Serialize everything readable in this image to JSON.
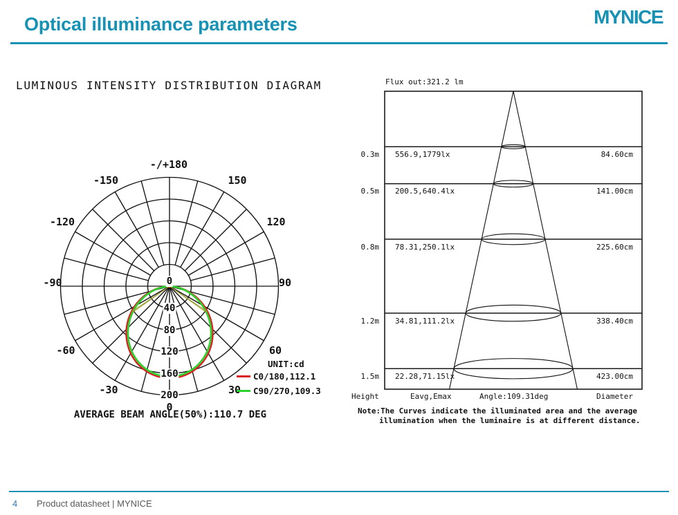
{
  "header": {
    "title": "Optical illuminance parameters",
    "logo": "MYNICE"
  },
  "colors": {
    "accent": "#1792b4",
    "curve_c0": "#d92121",
    "curve_c90": "#2fd32f",
    "beam_marker": "#9b9b2a",
    "grid": "#111111"
  },
  "chart_data": [
    {
      "type": "polar",
      "name": "luminous-intensity-distribution",
      "title": "LUMINOUS INTENSITY DISTRIBUTION DIAGRAM",
      "unit_label": "UNIT:cd",
      "angle_grid_step_deg": 15,
      "radial_axis_max": 200,
      "angle_tick_labels": [
        "-/+180",
        "-150",
        "150",
        "-120",
        "120",
        "-90",
        "90",
        "-60",
        "60",
        "-30",
        "30",
        "0"
      ],
      "radial_tick_labels": [
        "0",
        "40",
        "80",
        "120",
        "160",
        "200"
      ],
      "series": [
        {
          "label": "C0/180,112.1",
          "plane": "C0/180",
          "beam_angle_deg": 112.1,
          "peak_cd": 169,
          "color": "#d92121"
        },
        {
          "label": "C90/270,109.3",
          "plane": "C90/270",
          "beam_angle_deg": 109.3,
          "peak_cd": 166,
          "color": "#2fd32f"
        }
      ],
      "average_beam_angle_deg": 110.7,
      "footer_label": "AVERAGE BEAM ANGLE(50%):110.7 DEG"
    },
    {
      "type": "cone",
      "name": "illuminance-at-distance",
      "flux_label": "Flux out:321.2 lm",
      "flux_lm": 321.2,
      "beam_angle_deg": 109.31,
      "rows": [
        {
          "height": "0.3m",
          "height_m": 0.3,
          "eavg_emax": "556.9,1779lx",
          "diameter": "84.60cm"
        },
        {
          "height": "0.5m",
          "height_m": 0.5,
          "eavg_emax": "200.5,640.4lx",
          "diameter": "141.00cm"
        },
        {
          "height": "0.8m",
          "height_m": 0.8,
          "eavg_emax": "78.31,250.1lx",
          "diameter": "225.60cm"
        },
        {
          "height": "1.2m",
          "height_m": 1.2,
          "eavg_emax": "34.81,111.2lx",
          "diameter": "338.40cm"
        },
        {
          "height": "1.5m",
          "height_m": 1.5,
          "eavg_emax": "22.28,71.15lx",
          "diameter": "423.00cm"
        }
      ],
      "columns": {
        "height": "Height",
        "eavg_emax": "Eavg,Emax",
        "angle": "Angle:109.31deg",
        "diameter": "Diameter"
      },
      "note_line1": "Note:The Curves indicate the illuminated area and the average",
      "note_line2": "illumination when the luminaire is at different distance."
    }
  ],
  "footer": {
    "page_number": "4",
    "text": "Product datasheet | MYNICE"
  }
}
